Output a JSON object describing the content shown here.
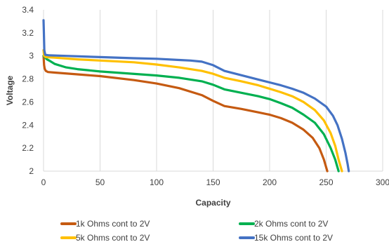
{
  "chart_data": {
    "type": "line",
    "title": "",
    "xlabel": "Capacity",
    "ylabel": "Voltage",
    "xlim": [
      0,
      300
    ],
    "ylim": [
      2,
      3.4
    ],
    "xticks": [
      0,
      50,
      100,
      150,
      200,
      250,
      300
    ],
    "yticks": [
      2,
      2.2,
      2.4,
      2.6,
      2.8,
      3,
      3.2,
      3.4
    ],
    "yticklabels": [
      "2",
      "2.2",
      "2.4",
      "2.6",
      "2.8",
      "3",
      "3.2",
      "3.4"
    ],
    "grid": "vertical",
    "legend_position": "bottom",
    "series": [
      {
        "name": "1k Ohms cont to 2V",
        "color": "#C55A11",
        "points": [
          [
            0,
            3.0
          ],
          [
            0.5,
            2.92
          ],
          [
            1,
            2.89
          ],
          [
            2,
            2.87
          ],
          [
            4,
            2.86
          ],
          [
            10,
            2.855
          ],
          [
            30,
            2.84
          ],
          [
            50,
            2.825
          ],
          [
            80,
            2.79
          ],
          [
            100,
            2.76
          ],
          [
            120,
            2.72
          ],
          [
            140,
            2.66
          ],
          [
            150,
            2.61
          ],
          [
            160,
            2.565
          ],
          [
            175,
            2.54
          ],
          [
            190,
            2.51
          ],
          [
            200,
            2.49
          ],
          [
            210,
            2.46
          ],
          [
            220,
            2.42
          ],
          [
            230,
            2.36
          ],
          [
            238,
            2.29
          ],
          [
            244,
            2.2
          ],
          [
            248,
            2.1
          ],
          [
            251,
            2.0
          ]
        ]
      },
      {
        "name": "2k Ohms cont to 2V",
        "color": "#00B050",
        "points": [
          [
            0,
            3.0
          ],
          [
            1,
            2.99
          ],
          [
            3,
            2.97
          ],
          [
            5,
            2.96
          ],
          [
            10,
            2.93
          ],
          [
            20,
            2.9
          ],
          [
            30,
            2.885
          ],
          [
            50,
            2.865
          ],
          [
            100,
            2.83
          ],
          [
            120,
            2.81
          ],
          [
            140,
            2.78
          ],
          [
            150,
            2.75
          ],
          [
            160,
            2.71
          ],
          [
            175,
            2.68
          ],
          [
            190,
            2.65
          ],
          [
            200,
            2.625
          ],
          [
            210,
            2.59
          ],
          [
            220,
            2.55
          ],
          [
            230,
            2.49
          ],
          [
            240,
            2.42
          ],
          [
            248,
            2.32
          ],
          [
            254,
            2.2
          ],
          [
            258,
            2.1
          ],
          [
            261,
            2.0
          ]
        ]
      },
      {
        "name": "5k Ohms cont to 2V",
        "color": "#FFC000",
        "points": [
          [
            0,
            3.05
          ],
          [
            0.5,
            3.0
          ],
          [
            2,
            2.99
          ],
          [
            10,
            2.985
          ],
          [
            30,
            2.97
          ],
          [
            50,
            2.96
          ],
          [
            80,
            2.945
          ],
          [
            100,
            2.925
          ],
          [
            120,
            2.9
          ],
          [
            140,
            2.87
          ],
          [
            150,
            2.845
          ],
          [
            160,
            2.81
          ],
          [
            175,
            2.78
          ],
          [
            190,
            2.745
          ],
          [
            200,
            2.715
          ],
          [
            210,
            2.685
          ],
          [
            220,
            2.65
          ],
          [
            230,
            2.6
          ],
          [
            240,
            2.53
          ],
          [
            248,
            2.44
          ],
          [
            254,
            2.33
          ],
          [
            258,
            2.22
          ],
          [
            261,
            2.1
          ],
          [
            264,
            2.0
          ]
        ]
      },
      {
        "name": "15k Ohms cont to 2V",
        "color": "#4472C4",
        "points": [
          [
            0,
            3.31
          ],
          [
            0.3,
            3.2
          ],
          [
            0.7,
            3.05
          ],
          [
            1.5,
            3.01
          ],
          [
            5,
            3.005
          ],
          [
            20,
            3.0
          ],
          [
            50,
            2.99
          ],
          [
            80,
            2.98
          ],
          [
            100,
            2.975
          ],
          [
            120,
            2.965
          ],
          [
            130,
            2.96
          ],
          [
            140,
            2.95
          ],
          [
            150,
            2.92
          ],
          [
            160,
            2.87
          ],
          [
            170,
            2.845
          ],
          [
            180,
            2.82
          ],
          [
            190,
            2.795
          ],
          [
            200,
            2.77
          ],
          [
            210,
            2.745
          ],
          [
            220,
            2.715
          ],
          [
            230,
            2.68
          ],
          [
            240,
            2.63
          ],
          [
            250,
            2.56
          ],
          [
            256,
            2.48
          ],
          [
            260,
            2.4
          ],
          [
            264,
            2.28
          ],
          [
            267,
            2.16
          ],
          [
            269,
            2.06
          ],
          [
            270,
            2.0
          ]
        ]
      }
    ]
  }
}
